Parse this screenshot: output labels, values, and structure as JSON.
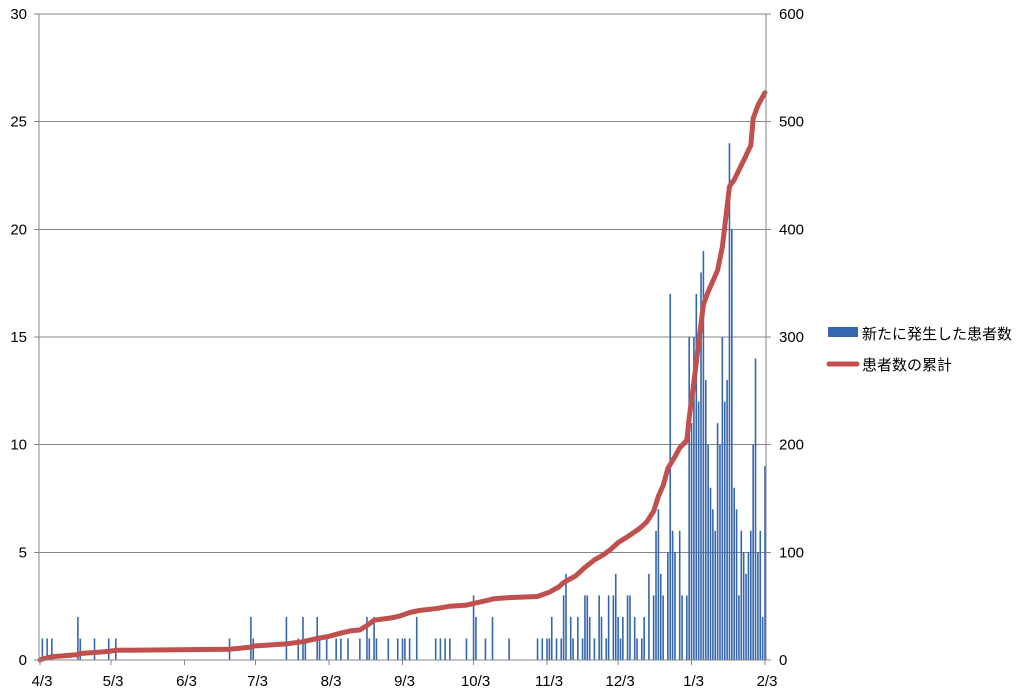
{
  "chart_data": {
    "type": "bar",
    "xlim": [
      "4/3",
      "2/3"
    ],
    "x_ticks": [
      "4/3",
      "5/3",
      "6/3",
      "7/3",
      "8/3",
      "9/3",
      "10/3",
      "11/3",
      "12/3",
      "1/3",
      "2/3"
    ],
    "y_left": {
      "lim": [
        0,
        30
      ],
      "ticks": [
        "0",
        "5",
        "10",
        "15",
        "20",
        "25",
        "30"
      ]
    },
    "y_right": {
      "lim": [
        0,
        600
      ],
      "ticks": [
        "0",
        "100",
        "200",
        "300",
        "400",
        "500",
        "600"
      ]
    },
    "grid": true,
    "legend": "right",
    "series": [
      {
        "name": "新たに発生した患者数",
        "type": "bar",
        "axis": "left",
        "color": "#3566AE",
        "points": [
          [
            "4/4",
            1
          ],
          [
            "4/6",
            1
          ],
          [
            "4/8",
            1
          ],
          [
            "4/19",
            2
          ],
          [
            "4/20",
            1
          ],
          [
            "4/26",
            1
          ],
          [
            "5/2",
            1
          ],
          [
            "5/5",
            1
          ],
          [
            "6/22",
            1
          ],
          [
            "7/1",
            2
          ],
          [
            "7/2",
            1
          ],
          [
            "7/16",
            2
          ],
          [
            "7/21",
            1
          ],
          [
            "7/23",
            2
          ],
          [
            "7/24",
            1
          ],
          [
            "7/29",
            2
          ],
          [
            "7/30",
            1
          ],
          [
            "8/2",
            1
          ],
          [
            "8/6",
            1
          ],
          [
            "8/8",
            1
          ],
          [
            "8/11",
            1
          ],
          [
            "8/16",
            1
          ],
          [
            "8/19",
            2
          ],
          [
            "8/20",
            1
          ],
          [
            "8/22",
            2
          ],
          [
            "8/23",
            1
          ],
          [
            "8/28",
            1
          ],
          [
            "9/1",
            1
          ],
          [
            "9/3",
            1
          ],
          [
            "9/4",
            1
          ],
          [
            "9/6",
            1
          ],
          [
            "9/9",
            2
          ],
          [
            "9/17",
            1
          ],
          [
            "9/19",
            1
          ],
          [
            "9/21",
            1
          ],
          [
            "9/23",
            1
          ],
          [
            "9/30",
            1
          ],
          [
            "10/3",
            3
          ],
          [
            "10/4",
            2
          ],
          [
            "10/8",
            1
          ],
          [
            "10/11",
            2
          ],
          [
            "10/18",
            1
          ],
          [
            "10/30",
            1
          ],
          [
            "11/1",
            1
          ],
          [
            "11/3",
            1
          ],
          [
            "11/4",
            1
          ],
          [
            "11/5",
            2
          ],
          [
            "11/7",
            1
          ],
          [
            "11/9",
            1
          ],
          [
            "11/10",
            3
          ],
          [
            "11/11",
            4
          ],
          [
            "11/13",
            2
          ],
          [
            "11/14",
            1
          ],
          [
            "11/16",
            2
          ],
          [
            "11/18",
            1
          ],
          [
            "11/19",
            3
          ],
          [
            "11/20",
            3
          ],
          [
            "11/21",
            2
          ],
          [
            "11/23",
            1
          ],
          [
            "11/25",
            3
          ],
          [
            "11/26",
            2
          ],
          [
            "11/28",
            1
          ],
          [
            "11/29",
            3
          ],
          [
            "12/1",
            3
          ],
          [
            "12/2",
            4
          ],
          [
            "12/3",
            2
          ],
          [
            "12/4",
            1
          ],
          [
            "12/5",
            2
          ],
          [
            "12/7",
            3
          ],
          [
            "12/8",
            3
          ],
          [
            "12/10",
            2
          ],
          [
            "12/11",
            1
          ],
          [
            "12/13",
            1
          ],
          [
            "12/14",
            2
          ],
          [
            "12/16",
            4
          ],
          [
            "12/18",
            3
          ],
          [
            "12/19",
            6
          ],
          [
            "12/20",
            7
          ],
          [
            "12/21",
            4
          ],
          [
            "12/22",
            3
          ],
          [
            "12/24",
            5
          ],
          [
            "12/25",
            17
          ],
          [
            "12/26",
            6
          ],
          [
            "12/27",
            5
          ],
          [
            "12/29",
            6
          ],
          [
            "12/30",
            3
          ],
          [
            "1/1",
            3
          ],
          [
            "1/2",
            15
          ],
          [
            "1/3",
            11
          ],
          [
            "1/4",
            15
          ],
          [
            "1/5",
            17
          ],
          [
            "1/6",
            12
          ],
          [
            "1/7",
            18
          ],
          [
            "1/8",
            19
          ],
          [
            "1/9",
            13
          ],
          [
            "1/10",
            10
          ],
          [
            "1/11",
            8
          ],
          [
            "1/12",
            7
          ],
          [
            "1/13",
            6
          ],
          [
            "1/14",
            11
          ],
          [
            "1/15",
            10
          ],
          [
            "1/16",
            15
          ],
          [
            "1/17",
            12
          ],
          [
            "1/18",
            13
          ],
          [
            "1/19",
            24
          ],
          [
            "1/20",
            20
          ],
          [
            "1/21",
            8
          ],
          [
            "1/22",
            7
          ],
          [
            "1/23",
            3
          ],
          [
            "1/24",
            6
          ],
          [
            "1/25",
            5
          ],
          [
            "1/26",
            4
          ],
          [
            "1/27",
            5
          ],
          [
            "1/28",
            6
          ],
          [
            "1/29",
            10
          ],
          [
            "1/30",
            14
          ],
          [
            "1/31",
            5
          ],
          [
            "2/1",
            6
          ],
          [
            "2/2",
            2
          ],
          [
            "2/3",
            9
          ]
        ]
      },
      {
        "name": "患者数の累計",
        "type": "line",
        "axis": "right",
        "color": "#C0504D",
        "points": [
          [
            "4/3",
            0
          ],
          [
            "4/4",
            1
          ],
          [
            "4/8",
            3
          ],
          [
            "4/19",
            5
          ],
          [
            "4/20",
            6
          ],
          [
            "4/26",
            7
          ],
          [
            "5/2",
            8
          ],
          [
            "5/5",
            9
          ],
          [
            "6/22",
            10
          ],
          [
            "7/1",
            12
          ],
          [
            "7/2",
            13
          ],
          [
            "7/16",
            15
          ],
          [
            "7/23",
            17
          ],
          [
            "7/29",
            20
          ],
          [
            "8/3",
            22
          ],
          [
            "8/8",
            25
          ],
          [
            "8/12",
            27
          ],
          [
            "8/16",
            28
          ],
          [
            "8/19",
            32
          ],
          [
            "8/22",
            37
          ],
          [
            "8/29",
            39
          ],
          [
            "9/2",
            41
          ],
          [
            "9/6",
            44
          ],
          [
            "9/10",
            46
          ],
          [
            "9/18",
            48
          ],
          [
            "9/23",
            50
          ],
          [
            "9/30",
            51
          ],
          [
            "10/4",
            53
          ],
          [
            "10/8",
            55
          ],
          [
            "10/12",
            57
          ],
          [
            "10/18",
            58
          ],
          [
            "10/30",
            59
          ],
          [
            "11/4",
            63
          ],
          [
            "11/8",
            68
          ],
          [
            "11/10",
            72
          ],
          [
            "11/15",
            78
          ],
          [
            "11/19",
            86
          ],
          [
            "11/23",
            93
          ],
          [
            "11/27",
            98
          ],
          [
            "11/30",
            103
          ],
          [
            "12/3",
            109
          ],
          [
            "12/8",
            116
          ],
          [
            "12/12",
            122
          ],
          [
            "12/15",
            128
          ],
          [
            "12/18",
            138
          ],
          [
            "12/20",
            152
          ],
          [
            "12/22",
            162
          ],
          [
            "12/24",
            178
          ],
          [
            "12/27",
            189
          ],
          [
            "12/29",
            197
          ],
          [
            "1/1",
            204
          ],
          [
            "1/2",
            225
          ],
          [
            "1/4",
            258
          ],
          [
            "1/6",
            295
          ],
          [
            "1/8",
            330
          ],
          [
            "1/10",
            342
          ],
          [
            "1/12",
            352
          ],
          [
            "1/14",
            362
          ],
          [
            "1/16",
            384
          ],
          [
            "1/19",
            440
          ],
          [
            "1/21",
            446
          ],
          [
            "1/23",
            455
          ],
          [
            "1/25",
            464
          ],
          [
            "1/28",
            478
          ],
          [
            "1/29",
            503
          ],
          [
            "1/31",
            515
          ],
          [
            "2/3",
            527
          ]
        ]
      }
    ]
  }
}
